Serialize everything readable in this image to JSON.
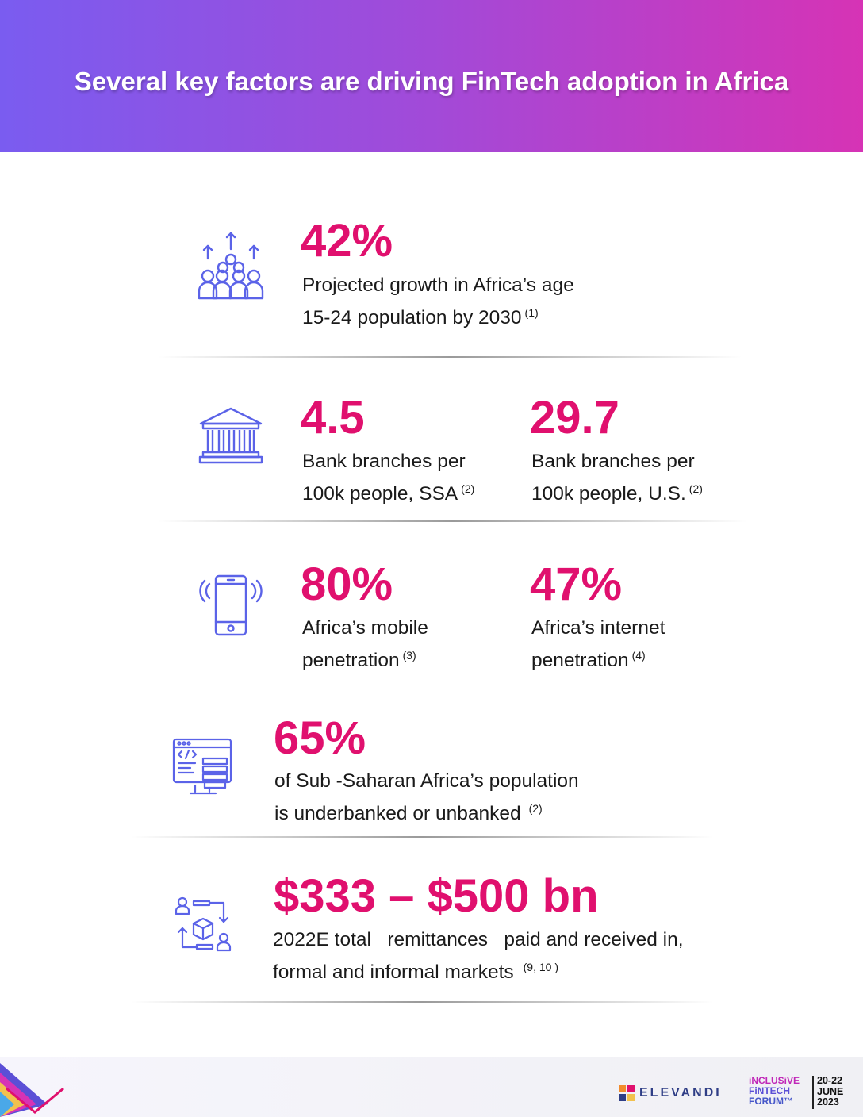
{
  "header": {
    "title": "Several key factors are driving FinTech adoption in Africa"
  },
  "stats": [
    {
      "value": "42%",
      "line1": "Projected growth in Africa’s age",
      "line2": "15-24 population by 2030",
      "ref": "(1)",
      "icon": "people-growth-icon"
    },
    {
      "value": "4.5",
      "line1": "Bank branches per",
      "line2": "100k people, SSA",
      "ref": "(2)",
      "icon": "bank-icon"
    },
    {
      "value": "29.7",
      "line1": "Bank branches per",
      "line2": "100k people, U.S.",
      "ref": "(2)"
    },
    {
      "value": "80%",
      "line1": "Africa’s mobile",
      "line2": "penetration",
      "ref": "(3)",
      "icon": "mobile-phone-icon"
    },
    {
      "value": "47%",
      "line1": "Africa’s internet",
      "line2": "penetration",
      "ref": "(4)"
    },
    {
      "value": "65%",
      "line1": "of Sub -Saharan Africa’s population",
      "line2": "is underbanked or unbanked",
      "ref": "(2)",
      "icon": "computer-code-icon"
    },
    {
      "value": "$333 – $500 bn",
      "line1": "2022E total   remittances   paid and received in,",
      "line2": "formal and informal markets",
      "ref": "(9, 10 )",
      "icon": "remittance-transfer-icon"
    }
  ],
  "footer": {
    "brand": "ELEVANDI",
    "forum_line1": "iNCLUSiVE",
    "forum_line2": "FiNTECH",
    "forum_line3": "FORUM™",
    "dates_line1": "20-22",
    "dates_line2": "JUNE",
    "dates_line3": "2023"
  },
  "colors": {
    "accent": "#e0106e",
    "icon": "#5b63e8",
    "gradient_start": "#7a5cf0",
    "gradient_end": "#d633b5"
  }
}
